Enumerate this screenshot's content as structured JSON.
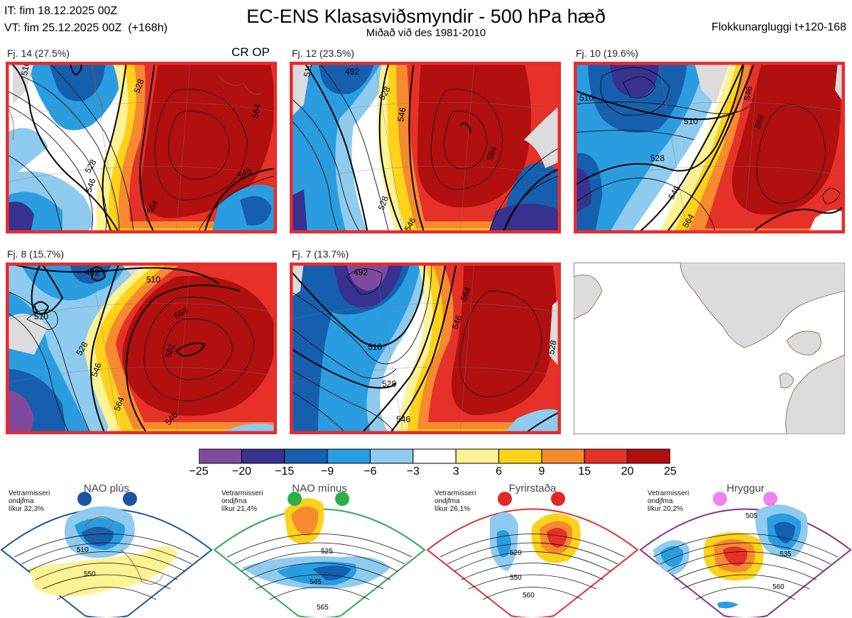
{
  "header": {
    "it_line": "IT: fim 18.12.2025 00Z",
    "vt_line": "VT: fim 25.12.2025 00Z  (+168h)",
    "title": "EC-ENS Klasasviðsmyndir - 500 hPa hæð",
    "subtitle": "Miðað við des 1981-2010",
    "window": "Flokkunargluggi t+120-168"
  },
  "panels": [
    {
      "label": "Fj. 14 (27.5%)",
      "tag": "CR OP",
      "contours": [
        "510",
        "528",
        "546",
        "564",
        "546",
        "564",
        "528"
      ]
    },
    {
      "label": "Fj. 12 (23.5%)",
      "tag": "",
      "contours": [
        "492",
        "510",
        "528",
        "546",
        "564",
        "528",
        "546"
      ]
    },
    {
      "label": "Fj. 10 (19.6%)",
      "tag": "",
      "contours": [
        "510",
        "510",
        "528",
        "546",
        "564",
        "546",
        "564"
      ]
    },
    {
      "label": "Fj. 8 (15.7%)",
      "tag": "",
      "contours": [
        "510",
        "492",
        "510",
        "528",
        "546",
        "564",
        "582",
        "564",
        "546"
      ]
    },
    {
      "label": "Fj. 7 (13.7%)",
      "tag": "",
      "contours": [
        "492",
        "510",
        "528",
        "546",
        "564",
        "546",
        "528"
      ]
    }
  ],
  "colors": {
    "dark_red": "#b20f0f",
    "red": "#e53128",
    "orange": "#f58a2e",
    "gold": "#fdd21a",
    "yellow": "#fdf294",
    "white": "#ffffff",
    "light_blue": "#8ecbee",
    "blue": "#2a9de0",
    "mid_blue": "#155fae",
    "dark_blue": "#37318f",
    "purple": "#7f4a9e",
    "frame_red": "#e82c2c",
    "grey_land": "#dcdcdc",
    "coast": "#8b5a2b"
  },
  "chart_data": {
    "type": "heatmap",
    "title": "EC-ENS Klasasviðsmyndir - 500 hPa hæð",
    "colorbar": {
      "ticks": [
        -25,
        -20,
        -15,
        -9,
        -6,
        -3,
        3,
        6,
        9,
        15,
        20,
        25
      ],
      "tick_labels": [
        "−25",
        "−20",
        "−15",
        "−9",
        "−6",
        "−3",
        "3",
        "6",
        "9",
        "15",
        "20",
        "25"
      ],
      "colors": [
        "#7f4a9e",
        "#37318f",
        "#155fae",
        "#2a9de0",
        "#8ecbee",
        "#ffffff",
        "#fdf294",
        "#fdd21a",
        "#f58a2e",
        "#e53128",
        "#b20f0f"
      ]
    },
    "clusters": [
      {
        "name": "Fj. 14",
        "probability_pct": 27.5
      },
      {
        "name": "Fj. 12",
        "probability_pct": 23.5
      },
      {
        "name": "Fj. 10",
        "probability_pct": 19.6
      },
      {
        "name": "Fj. 8",
        "probability_pct": 15.7
      },
      {
        "name": "Fj. 7",
        "probability_pct": 13.7
      }
    ],
    "regimes": [
      {
        "name": "NAO plús",
        "info": "Vetrarmisseri\nondjfma\nlíkur 32,3%",
        "likelihood_pct": 32.3,
        "contours": [
          "510",
          "550"
        ],
        "frame": "#1a56a0",
        "dot": "#1a56a0"
      },
      {
        "name": "NAO mínus",
        "info": "Vetrarmisseri\nondjfma\nlíkur 21,4%",
        "likelihood_pct": 21.4,
        "contours": [
          "525",
          "545",
          "565"
        ],
        "frame": "#2fa84f",
        "dot": "#2ab04a"
      },
      {
        "name": "Fyrirstaða",
        "info": "Vetrarmisseri\nondjfma\nlíkur 26,1%",
        "likelihood_pct": 26.1,
        "contours": [
          "520",
          "550",
          "560"
        ],
        "frame": "#e03030",
        "dot": "#e32626"
      },
      {
        "name": "Hryggur",
        "info": "Vetrarmisseri\nondjfma\nlíkur 20,2%",
        "likelihood_pct": 20.2,
        "contours": [
          "505",
          "535",
          "560"
        ],
        "frame": "#8a2d8a",
        "dot": "#ee82ee"
      }
    ]
  }
}
